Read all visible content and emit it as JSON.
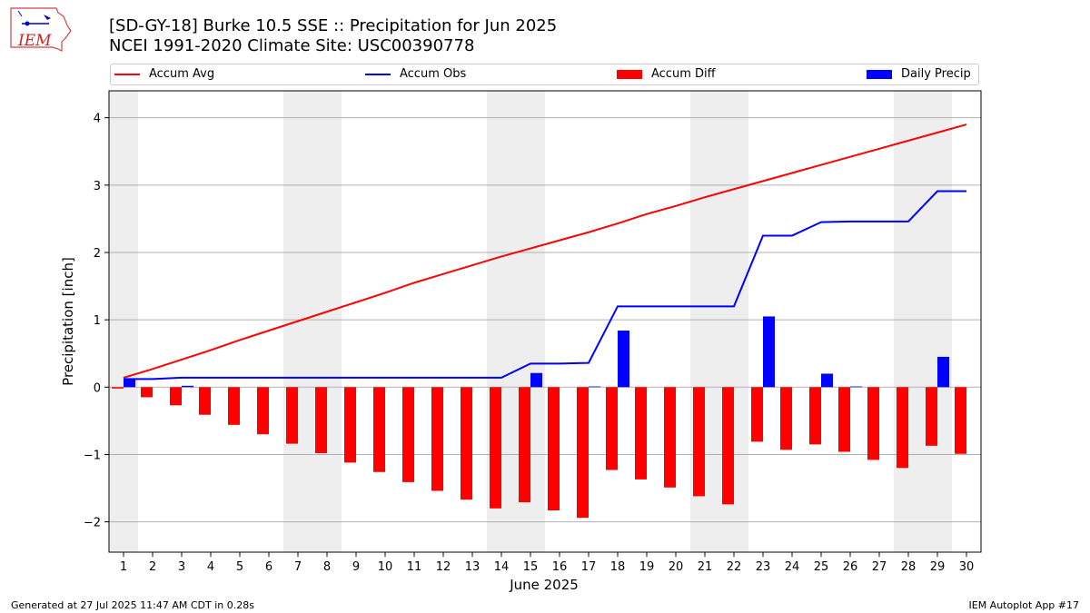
{
  "logo_text": "IEM",
  "footer": {
    "left": "Generated at 27 Jul 2025 11:47 AM CDT in 0.28s",
    "right": "IEM Autoplot App #17"
  },
  "chart_data": {
    "type": "bar",
    "title": "[SD-GY-18] Burke 10.5 SSE :: Precipitation for Jun 2025",
    "subtitle": "NCEI 1991-2020 Climate Site: USC00390778",
    "xlabel": "June 2025",
    "ylabel": "Precipitation [inch]",
    "ylim": [
      -2.45,
      4.4
    ],
    "yticks": [
      -2,
      -1,
      0,
      1,
      2,
      3,
      4
    ],
    "ytick_labels": [
      "−2",
      "−1",
      "0",
      "1",
      "2",
      "3",
      "4"
    ],
    "grid": true,
    "legend_placement": "top",
    "weekend_shading": [
      [
        0.5,
        1.5
      ],
      [
        6.5,
        8.5
      ],
      [
        13.5,
        15.5
      ],
      [
        20.5,
        22.5
      ],
      [
        27.5,
        29.5
      ]
    ],
    "x": [
      1,
      2,
      3,
      4,
      5,
      6,
      7,
      8,
      9,
      10,
      11,
      12,
      13,
      14,
      15,
      16,
      17,
      18,
      19,
      20,
      21,
      22,
      23,
      24,
      25,
      26,
      27,
      28,
      29,
      30
    ],
    "x_tick_labels": [
      "1",
      "2",
      "3",
      "4",
      "5",
      "6",
      "7",
      "8",
      "9",
      "10",
      "11",
      "12",
      "13",
      "14",
      "15",
      "16",
      "17",
      "18",
      "19",
      "20",
      "21",
      "22",
      "23",
      "24",
      "25",
      "26",
      "27",
      "28",
      "29",
      "30"
    ],
    "series": [
      {
        "name": "Accum Avg",
        "kind": "line",
        "color": "#ff0000",
        "values": [
          0.14,
          0.27,
          0.41,
          0.55,
          0.7,
          0.84,
          0.98,
          1.12,
          1.26,
          1.4,
          1.55,
          1.68,
          1.81,
          1.94,
          2.06,
          2.18,
          2.3,
          2.43,
          2.57,
          2.69,
          2.82,
          2.94,
          3.06,
          3.18,
          3.3,
          3.42,
          3.54,
          3.66,
          3.78,
          3.9
        ]
      },
      {
        "name": "Accum Obs",
        "kind": "line",
        "color": "#0000ff",
        "values": [
          0.12,
          0.12,
          0.14,
          0.14,
          0.14,
          0.14,
          0.14,
          0.14,
          0.14,
          0.14,
          0.14,
          0.14,
          0.14,
          0.14,
          0.35,
          0.35,
          0.36,
          1.2,
          1.2,
          1.2,
          1.2,
          1.2,
          2.25,
          2.25,
          2.45,
          2.46,
          2.46,
          2.46,
          2.91,
          2.91
        ]
      },
      {
        "name": "Accum Diff",
        "kind": "bar",
        "color": "#ff0000",
        "values": [
          -0.02,
          -0.15,
          -0.27,
          -0.41,
          -0.56,
          -0.7,
          -0.84,
          -0.98,
          -1.12,
          -1.26,
          -1.41,
          -1.54,
          -1.67,
          -1.8,
          -1.71,
          -1.83,
          -1.94,
          -1.23,
          -1.37,
          -1.49,
          -1.62,
          -1.74,
          -0.81,
          -0.93,
          -0.85,
          -0.96,
          -1.08,
          -1.2,
          -0.87,
          -0.99
        ]
      },
      {
        "name": "Daily Precip",
        "kind": "bar",
        "color": "#0000ff",
        "values": [
          0.12,
          0.0,
          0.02,
          0.0,
          0.0,
          0.0,
          0.0,
          0.0,
          0.0,
          0.0,
          0.0,
          0.0,
          0.0,
          0.0,
          0.21,
          0.0,
          0.01,
          0.84,
          0.0,
          0.0,
          0.0,
          0.0,
          1.05,
          0.0,
          0.2,
          0.01,
          0.0,
          0.0,
          0.45,
          0.0
        ]
      }
    ]
  },
  "colors": {
    "weekend_shade": "#eeeeee",
    "grid": "#b0b0b0"
  }
}
